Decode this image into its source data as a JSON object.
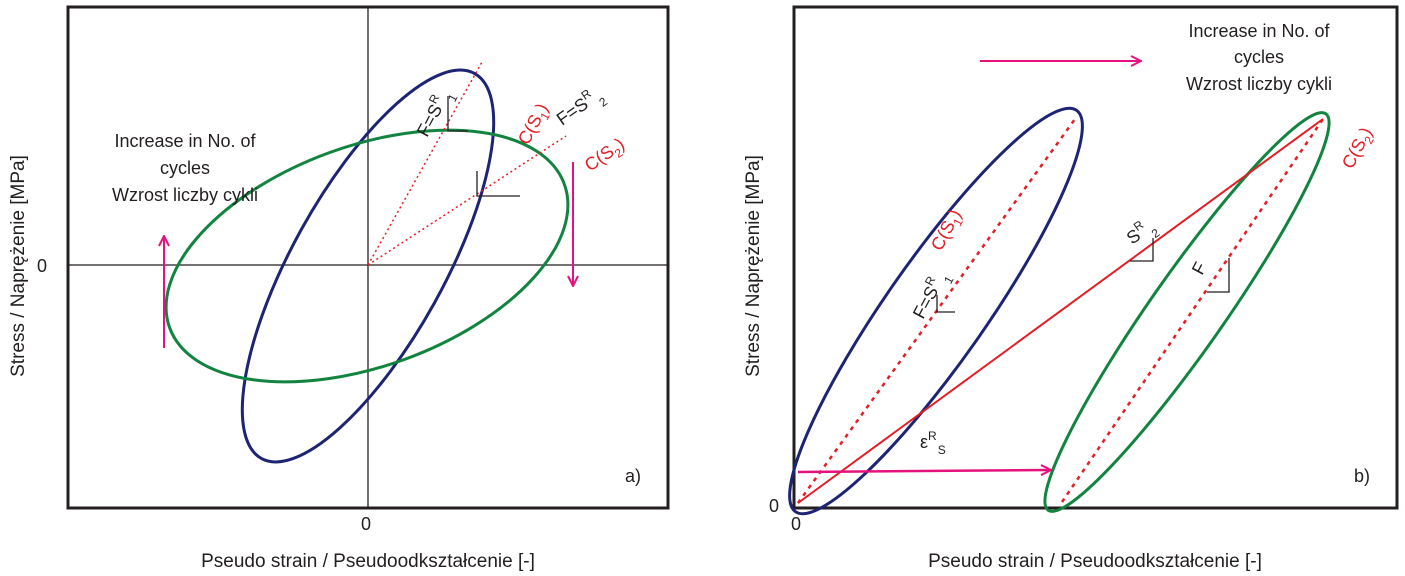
{
  "colors": {
    "frame": "#231f20",
    "cycle_1": "#1d2473",
    "cycle_2": "#128440",
    "secant": "#e31e24",
    "arrow": "#e5127d"
  },
  "panel_a": {
    "tag": "a)",
    "x_axis_title": "Pseudo strain / Pseudoodkształcenie [-]",
    "y_axis_title": "Stress / Naprężenie [MPa]",
    "x_tick": "0",
    "y_tick": "0",
    "note_lines": [
      "Increase in No. of",
      "cycles",
      "Wzrost liczby cykli"
    ],
    "c_s1": {
      "base": "C(S",
      "sub": "1",
      "close": ")"
    },
    "c_s2": {
      "base": "C(S",
      "sub": "2",
      "close": ")"
    },
    "f_sr1": {
      "base": "F=S",
      "sup": "R",
      "sub": "1"
    },
    "f_sr2": {
      "base": "F=S",
      "sup": "R",
      "sub": "2"
    }
  },
  "panel_b": {
    "tag": "b)",
    "x_axis_title": "Pseudo strain / Pseudoodkształcenie [-]",
    "y_axis_title": "Stress / Naprężenie [MPa]",
    "x_tick": "0",
    "y_tick": "0",
    "note_lines": [
      "Increase in No. of",
      "cycles",
      "Wzrost liczby cykli"
    ],
    "c_s1": {
      "base": "C(S",
      "sub": "1",
      "close": ")"
    },
    "c_s2": {
      "base": "C(S",
      "sub": "2",
      "close": ")"
    },
    "f_sr1": {
      "base": "F=S",
      "sup": "R",
      "sub": "1"
    },
    "sr2": {
      "base": "S",
      "sup": "R",
      "sub": "2"
    },
    "f": {
      "base": "F"
    },
    "eps": {
      "base": "ε",
      "sup": "R",
      "sub": "S"
    }
  }
}
